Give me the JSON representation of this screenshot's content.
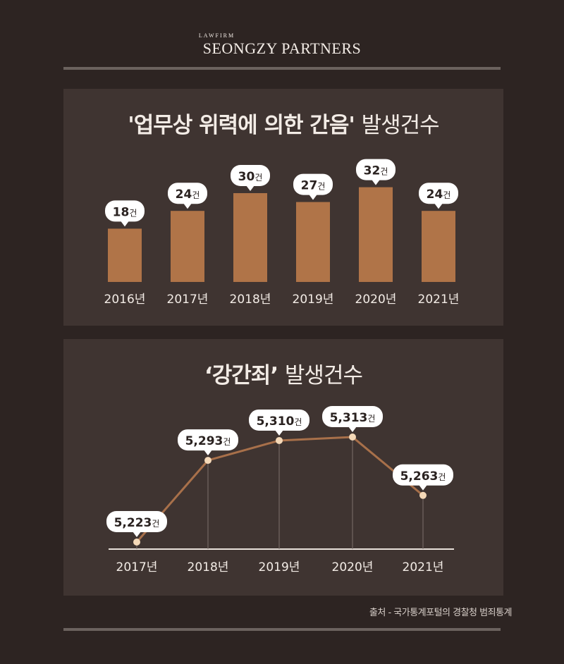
{
  "brand": {
    "small": "LAWFIRM",
    "name": "SEONGZY PARTNERS"
  },
  "charts": [
    {
      "type": "bar",
      "title_bold": "'업무상 위력에 의한 간음'",
      "title_light": "발생건수",
      "unit": "건",
      "categories": [
        "2016년",
        "2017년",
        "2018년",
        "2019년",
        "2020년",
        "2021년"
      ],
      "values": [
        18,
        24,
        30,
        27,
        32,
        24
      ],
      "bar_color": "#b07448"
    },
    {
      "type": "line",
      "title_bold": "‘강간죄’",
      "title_light": "발생건수",
      "unit": "건",
      "categories": [
        "2017년",
        "2018년",
        "2019년",
        "2020년",
        "2021년"
      ],
      "values": [
        5223,
        5293,
        5310,
        5313,
        5263
      ],
      "labels": [
        "5,223",
        "5,293",
        "5,310",
        "5,313",
        "5,263"
      ],
      "line_color": "#a8704a"
    }
  ],
  "source": "출처 - 국가통계포털의 경찰청 범죄통계"
}
